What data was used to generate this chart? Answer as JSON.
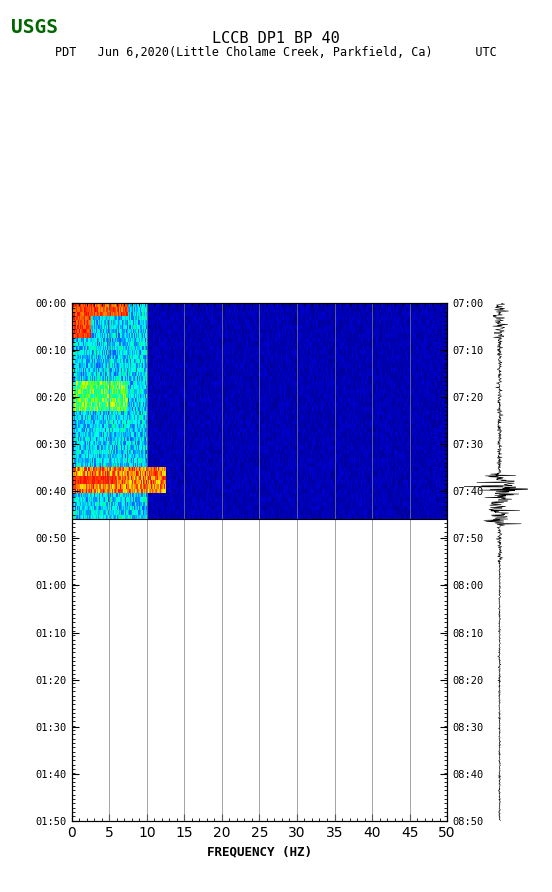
{
  "title_line1": "LCCB DP1 BP 40",
  "title_line2": "PDT   Jun 6,2020(Little Cholame Creek, Parkfield, Ca)      UTC",
  "xlabel": "FREQUENCY (HZ)",
  "freq_min": 0,
  "freq_max": 50,
  "freq_major_ticks": [
    0,
    5,
    10,
    15,
    20,
    25,
    30,
    35,
    40,
    45,
    50
  ],
  "left_time_labels": [
    "00:00",
    "00:10",
    "00:20",
    "00:30",
    "00:40",
    "00:50",
    "01:00",
    "01:10",
    "01:20",
    "01:30",
    "01:40",
    "01:50"
  ],
  "right_time_labels": [
    "07:00",
    "07:10",
    "07:20",
    "07:30",
    "07:40",
    "07:50",
    "08:00",
    "08:10",
    "08:20",
    "08:30",
    "08:40",
    "08:50"
  ],
  "spectrogram_rows": 12,
  "spectrogram_row_with_data": 5,
  "bg_color": "#ffffff",
  "spectrogram_bg": "#000080",
  "grid_color": "#808080",
  "waveform_color": "#000000"
}
